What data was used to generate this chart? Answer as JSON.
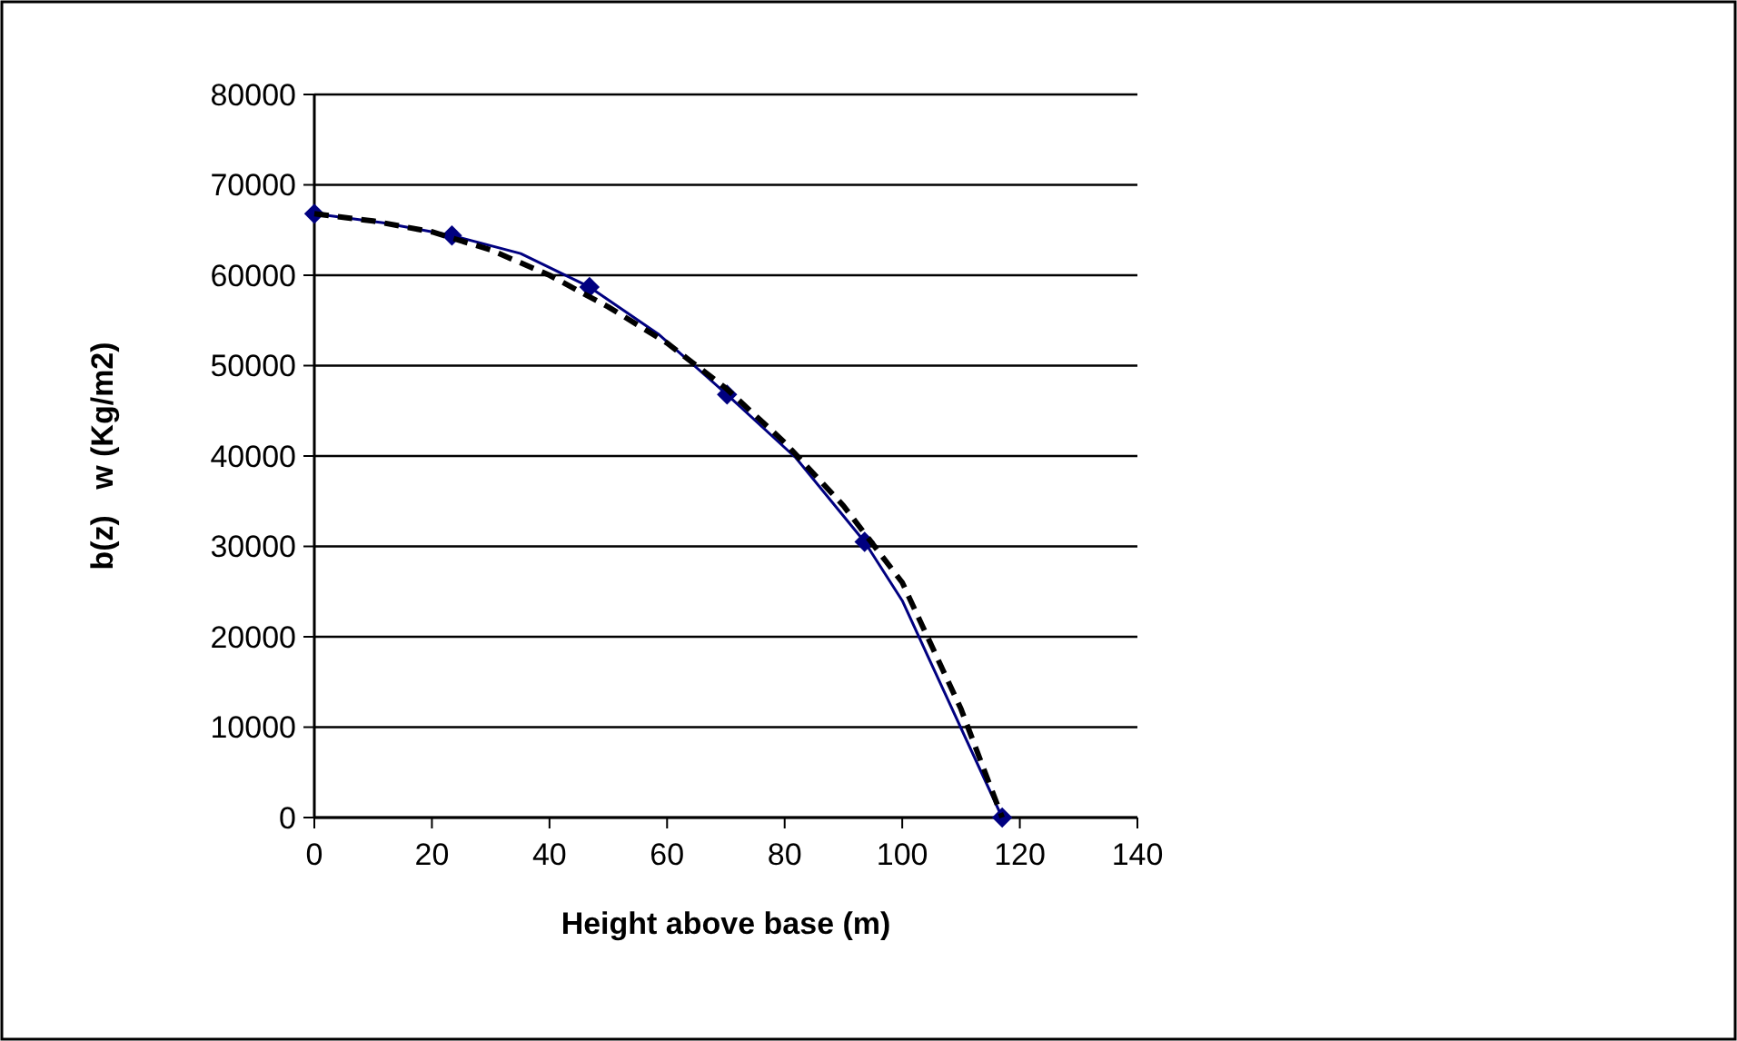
{
  "chart_data": {
    "type": "line",
    "xlabel": "Height above base (m)",
    "ylabel": "b(z)   w (Kg/m2)",
    "xlim": [
      0,
      140
    ],
    "xticks": [
      0,
      20,
      40,
      60,
      80,
      100,
      120,
      140
    ],
    "ylim": [
      0,
      80000
    ],
    "yticks": [
      0,
      10000,
      20000,
      30000,
      40000,
      50000,
      60000,
      70000,
      80000
    ],
    "grid": "y",
    "series": [
      {
        "color": "#000080",
        "marker": "none",
        "line_style": "solid",
        "x": [
          0,
          11.7,
          23.4,
          35.1,
          46.8,
          58.5,
          70.2,
          81.9,
          93.6,
          100,
          117
        ],
        "values": [
          66800,
          65800,
          64400,
          62400,
          58700,
          53500,
          46800,
          39800,
          30500,
          24000,
          0
        ]
      },
      {
        "type": "scatter",
        "color": "#000080",
        "marker": "diamond",
        "x": [
          0,
          23.4,
          46.8,
          70.2,
          93.6,
          117
        ],
        "values": [
          66800,
          64400,
          58700,
          46800,
          30500,
          0
        ]
      },
      {
        "color": "#000000",
        "marker": "none",
        "line_style": "dashed",
        "x": [
          0,
          10,
          20,
          30,
          40,
          50,
          60,
          70,
          80,
          90,
          100,
          110,
          117
        ],
        "values": [
          66800,
          66000,
          64800,
          62800,
          60000,
          56500,
          52500,
          47500,
          41500,
          34500,
          26000,
          12000,
          0
        ]
      }
    ]
  }
}
